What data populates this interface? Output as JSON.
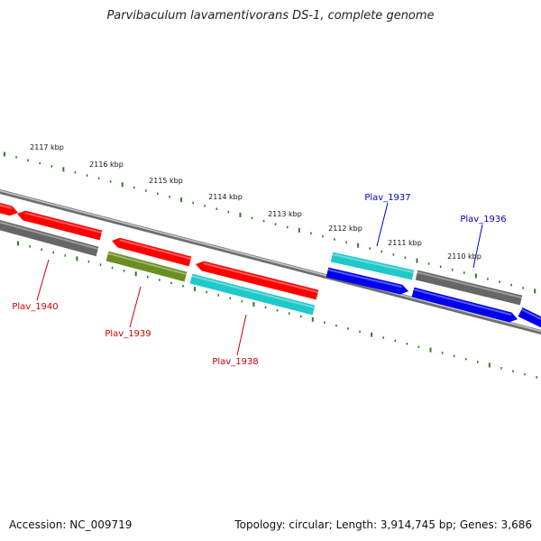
{
  "title": "Parvibaculum lavamentivorans DS-1, complete genome",
  "footer": {
    "accession": "Accession: NC_009719",
    "summary": "Topology: circular; Length: 3,914,745 bp; Genes: 3,686"
  },
  "ruler": {
    "labels": [
      "2117 kbp",
      "2116 kbp",
      "2115 kbp",
      "2114 kbp",
      "2113 kbp",
      "2112 kbp",
      "2111 kbp",
      "2110 kbp"
    ]
  },
  "colors": {
    "red": "#ff0000",
    "gray": "#666666",
    "olive": "#6b8e23",
    "cyan": "#20c8c8",
    "blue": "#0000ee",
    "tick_green": "#2e7d1e",
    "label_red": "#cc0000",
    "label_blue": "#0000cc"
  },
  "gene_labels": [
    {
      "text": "Plav_1940",
      "color": "label_red"
    },
    {
      "text": "Plav_1939",
      "color": "label_red"
    },
    {
      "text": "Plav_1938",
      "color": "label_red"
    },
    {
      "text": "Plav_1937",
      "color": "label_blue"
    },
    {
      "text": "Plav_1936",
      "color": "label_blue"
    }
  ]
}
